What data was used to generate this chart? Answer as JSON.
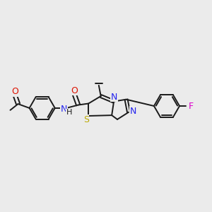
{
  "bg_color": "#ebebeb",
  "bond_color": "#1a1a1a",
  "atom_colors": {
    "O": "#dd1100",
    "N": "#2222ee",
    "S": "#bbaa00",
    "F": "#dd00cc",
    "NH": "#1a1a1a",
    "H": "#1a1a1a"
  },
  "font_size": 8.5,
  "line_width": 1.4,
  "figsize": [
    3.0,
    3.0
  ],
  "dpi": 100
}
